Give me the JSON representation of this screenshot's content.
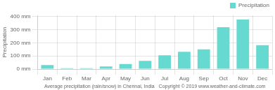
{
  "chart_data": {
    "type": "bar",
    "categories": [
      "Jan",
      "Feb",
      "Mar",
      "Apr",
      "May",
      "Jun",
      "Jul",
      "Aug",
      "Sep",
      "Oct",
      "Nov",
      "Dec"
    ],
    "series": [
      {
        "name": "Precipitation",
        "color": "#66d9d0",
        "values": [
          30,
          7,
          7,
          20,
          38,
          63,
          105,
          132,
          150,
          320,
          378,
          182
        ]
      }
    ],
    "xlabel": "Average precipitation (rain/snow) in Chennai, India   Copyright © 2019 www.weather-and-climate.com",
    "ylabel": "Precipitation",
    "ylim": [
      0,
      410
    ],
    "yticks": [
      {
        "value": 0,
        "label": "0 mm"
      },
      {
        "value": 100,
        "label": "100 mm"
      },
      {
        "value": 200,
        "label": "200 mm"
      },
      {
        "value": 300,
        "label": "300 mm"
      },
      {
        "value": 400,
        "label": "400 mm"
      }
    ],
    "grid": true,
    "legend": "upper right"
  }
}
